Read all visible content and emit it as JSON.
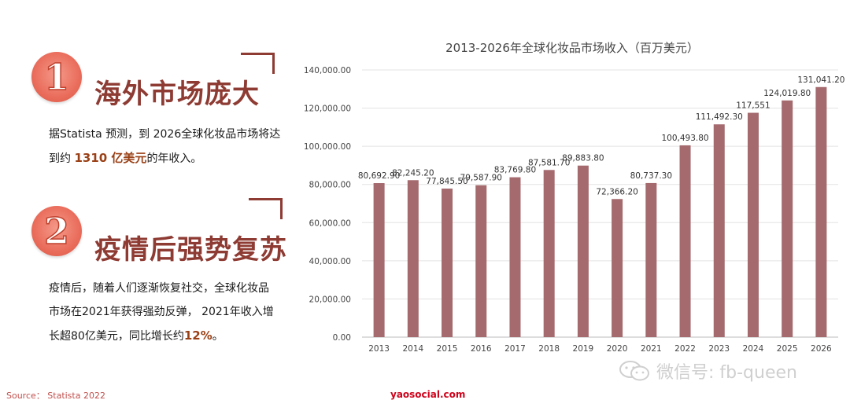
{
  "section1": {
    "number": "1",
    "heading": "海外市场庞大",
    "line1": "据Statista 预测，到 2026全球化妆品市场将达",
    "line2_pre": "到约 ",
    "line2_highlight": "1310 亿美元",
    "line2_post": "的年收入。"
  },
  "section2": {
    "number": "2",
    "heading": "疫情后强势复苏",
    "line1": "疫情后，随着人们逐渐恢复社交，全球化妆品",
    "line2": "市场在2021年获得强劲反弹， 2021年收入增",
    "line3_pre": "长超80亿美元，同比增长约",
    "line3_highlight": "12%",
    "line3_post": "。"
  },
  "footer": {
    "source": "Source： Statista 2022",
    "site": "yaosocial.com"
  },
  "watermark": {
    "text": "微信号: fb-queen",
    "icon": "wechat-icon"
  },
  "colors": {
    "bar": "#a46a6e",
    "accent": "#8e3b33",
    "badge": "#ea6d5c"
  },
  "chart_data": {
    "type": "bar",
    "title": "2013-2026年全球化妆品市场收入（百万美元）",
    "categories": [
      "2013",
      "2014",
      "2015",
      "2016",
      "2017",
      "2018",
      "2019",
      "2020",
      "2021",
      "2022",
      "2023",
      "2024",
      "2025",
      "2026"
    ],
    "values": [
      80692.9,
      82245.2,
      77845.5,
      79587.9,
      83769.8,
      87581.7,
      89883.8,
      72366.2,
      80737.3,
      100493.8,
      111492.3,
      117551,
      124019.8,
      131041.2
    ],
    "data_labels": [
      "80,692.90",
      "82,245.20",
      "77,845.50",
      "79,587.90",
      "83,769.80",
      "87,581.70",
      "89,883.80",
      "72,366.20",
      "80,737.30",
      "100,493.80",
      "111,492.30",
      "117,551",
      "124,019.80",
      "131,041.20"
    ],
    "y_ticks": [
      0,
      20000,
      40000,
      60000,
      80000,
      100000,
      120000,
      140000
    ],
    "y_tick_labels": [
      "0.00",
      "20,000.00",
      "40,000.00",
      "60,000.00",
      "80,000.00",
      "100,000.00",
      "120,000.00",
      "140,000.00"
    ],
    "ylim": [
      0,
      140000
    ],
    "grid": true,
    "legend": "none"
  }
}
